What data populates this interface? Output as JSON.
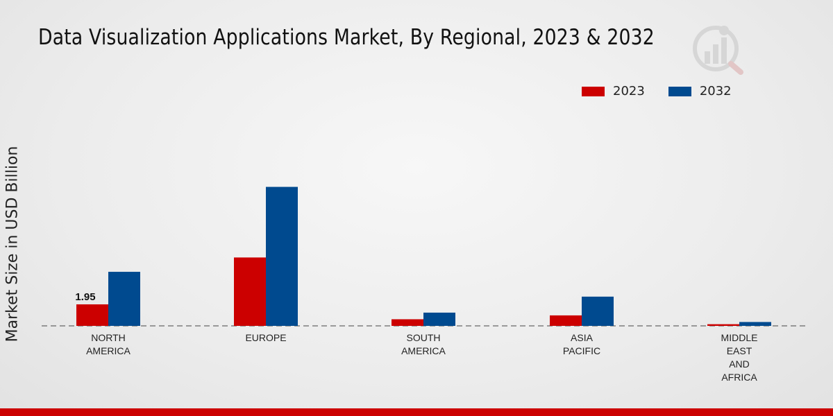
{
  "chart_data": {
    "type": "bar",
    "title": "Data Visualization Applications Market, By Regional, 2023 & 2032",
    "xlabel": "",
    "ylabel": "Market Size in USD Billion",
    "categories": [
      "NORTH\nAMERICA",
      "EUROPE",
      "SOUTH\nAMERICA",
      "ASIA\nPACIFIC",
      "MIDDLE\nEAST\nAND\nAFRICA"
    ],
    "series": [
      {
        "name": "2023",
        "color": "#cc0000",
        "values": [
          1.95,
          6.2,
          0.6,
          0.95,
          0.15
        ]
      },
      {
        "name": "2032",
        "color": "#004a8f",
        "values": [
          4.9,
          12.6,
          1.2,
          2.65,
          0.35
        ]
      }
    ],
    "data_labels": [
      {
        "series": 0,
        "index": 0,
        "text": "1.95"
      }
    ],
    "ylim": [
      0,
      22
    ],
    "grid": false,
    "legend_position": "top-right"
  }
}
